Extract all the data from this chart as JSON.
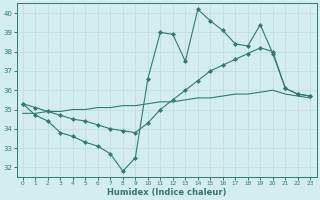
{
  "xlabel": "Humidex (Indice chaleur)",
  "background_color": "#d4edf0",
  "grid_color": "#c0dde0",
  "line_color": "#2e7d6e",
  "xlim": [
    -0.5,
    23.5
  ],
  "ylim": [
    31.5,
    40.5
  ],
  "yticks": [
    32,
    33,
    34,
    35,
    36,
    37,
    38,
    39,
    40
  ],
  "xticks": [
    0,
    1,
    2,
    3,
    4,
    5,
    6,
    7,
    8,
    9,
    10,
    11,
    12,
    13,
    14,
    15,
    16,
    17,
    18,
    19,
    20,
    21,
    22,
    23
  ],
  "line1_x": [
    0,
    1,
    2,
    3,
    4,
    5,
    6,
    7,
    8,
    9,
    10,
    11,
    12,
    13,
    14,
    15,
    16,
    17,
    18,
    19,
    20,
    21,
    22,
    23
  ],
  "line1_y": [
    35.3,
    34.7,
    34.4,
    33.8,
    33.6,
    33.3,
    33.1,
    32.7,
    31.8,
    32.5,
    36.6,
    39.0,
    38.9,
    37.5,
    40.2,
    39.6,
    39.1,
    38.4,
    38.3,
    39.4,
    37.9,
    36.1,
    35.8,
    35.7
  ],
  "line2_x": [
    0,
    1,
    2,
    3,
    4,
    5,
    6,
    7,
    8,
    9,
    10,
    11,
    12,
    13,
    14,
    15,
    16,
    17,
    18,
    19,
    20,
    21,
    22,
    23
  ],
  "line2_y": [
    35.3,
    35.1,
    34.9,
    34.7,
    34.5,
    34.4,
    34.2,
    34.0,
    33.9,
    33.8,
    34.3,
    35.0,
    35.5,
    36.0,
    36.5,
    37.0,
    37.3,
    37.6,
    37.9,
    38.2,
    38.0,
    36.1,
    35.8,
    35.7
  ],
  "line3_x": [
    0,
    1,
    2,
    3,
    4,
    5,
    6,
    7,
    8,
    9,
    10,
    11,
    12,
    13,
    14,
    15,
    16,
    17,
    18,
    19,
    20,
    21,
    22,
    23
  ],
  "line3_y": [
    34.8,
    34.8,
    34.9,
    34.9,
    35.0,
    35.0,
    35.1,
    35.1,
    35.2,
    35.2,
    35.3,
    35.4,
    35.4,
    35.5,
    35.6,
    35.6,
    35.7,
    35.8,
    35.8,
    35.9,
    36.0,
    35.8,
    35.7,
    35.6
  ]
}
